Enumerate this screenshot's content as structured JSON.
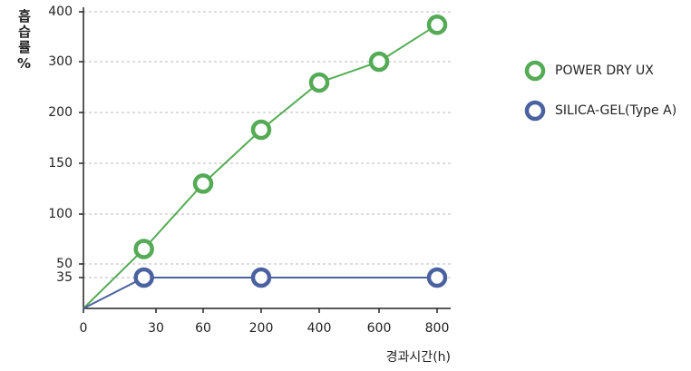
{
  "chart_data": {
    "type": "line",
    "y_label": "흡습률%",
    "x_label": "경과시간(h)",
    "xlim": [
      0,
      800
    ],
    "xticks": [
      0,
      30,
      60,
      200,
      400,
      600,
      800
    ],
    "ylim": [
      0,
      400
    ],
    "yticks": [
      35,
      50,
      100,
      150,
      200,
      300,
      400
    ],
    "grid": true,
    "legend": "right",
    "series": [
      {
        "name": "POWER DRY UX",
        "color": "#55ab55",
        "x": [
          0,
          25,
          60,
          200,
          400,
          600,
          800
        ],
        "values": [
          0,
          65,
          130,
          183,
          259,
          300,
          374
        ]
      },
      {
        "name": "SILICA-GEL(Type A)",
        "color": "#4a62a0",
        "x": [
          0,
          25,
          200,
          800
        ],
        "values": [
          0,
          35,
          35,
          35
        ]
      }
    ]
  }
}
